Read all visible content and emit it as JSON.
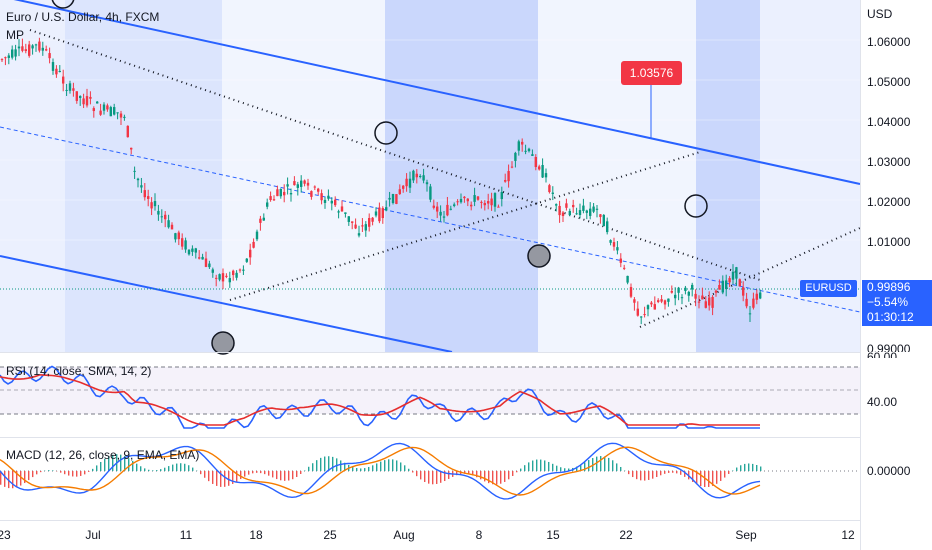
{
  "header": {
    "title": "Euro / U.S. Dollar, 4h, FXCM",
    "indicator_short": "MP"
  },
  "price_axis": {
    "currency": "USD",
    "ticks": [
      "1.06000",
      "1.05000",
      "1.04000",
      "1.03000",
      "1.02000",
      "1.01000"
    ],
    "cut_label": "0.99000",
    "symbol_tag": "EURUSD",
    "last_price": "0.99896",
    "change": "−5.54%",
    "countdown": "01:30:12"
  },
  "callout": {
    "value": "1.03576"
  },
  "rsi": {
    "title": "RSI (14, close, SMA, 14, 2)",
    "ticks": [
      "60.00",
      "40.00"
    ]
  },
  "macd": {
    "title": "MACD (12, 26, close, 9, EMA, EMA)",
    "ticks": [
      "0.00000"
    ]
  },
  "time_axis": {
    "labels": [
      "23",
      "Jul",
      "11",
      "18",
      "25",
      "Aug",
      "8",
      "15",
      "22",
      "Sep",
      "12"
    ]
  },
  "colors": {
    "channel": "#2962ff",
    "session_band": "#3f6ef5",
    "candle_up": "#089981",
    "candle_down": "#f23645",
    "rsi_line": "#2962ff",
    "rsi_ma": "#e52e2e",
    "macd_line": "#2962ff",
    "signal_line": "#f57c00",
    "callout_bg": "#f23645"
  },
  "icons": [
    "circle-marker-icon"
  ]
}
